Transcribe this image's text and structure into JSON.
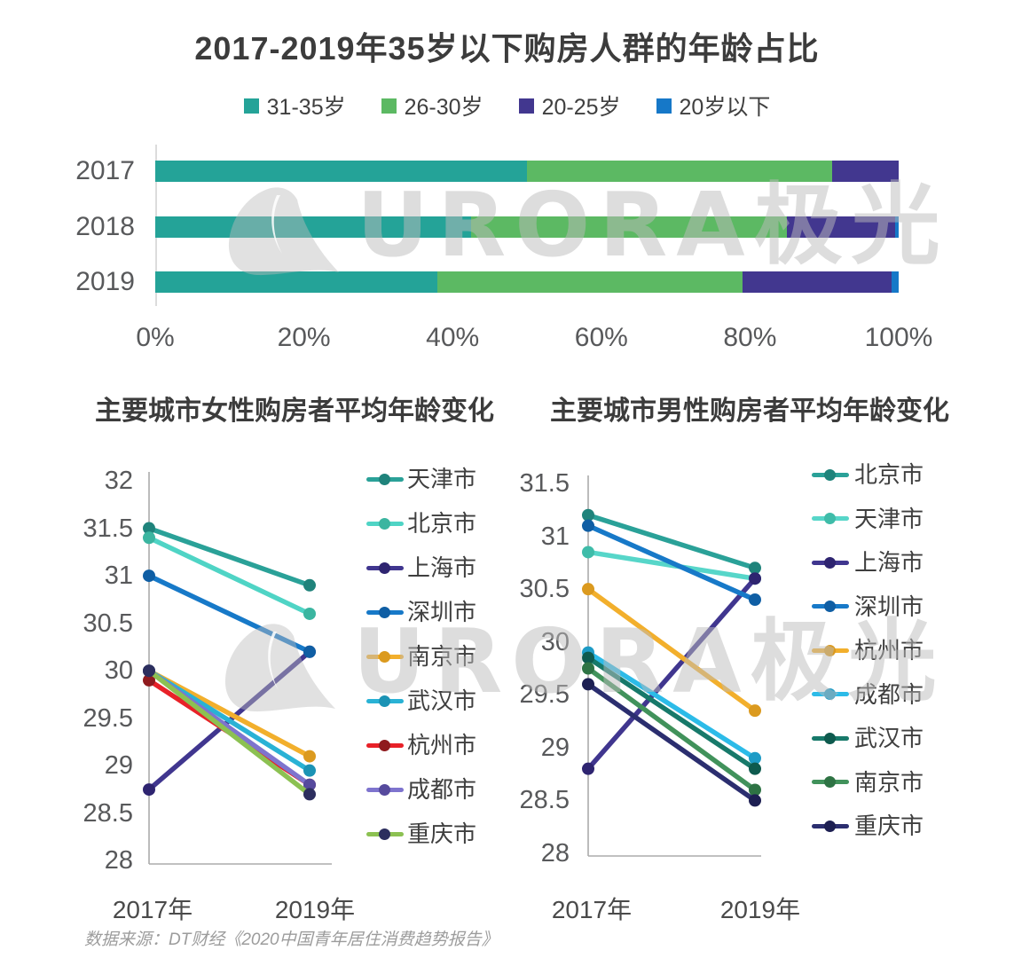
{
  "title": "2017-2019年35岁以下购房人群的年龄占比",
  "watermark": {
    "text": "URORA极光"
  },
  "source_note": "数据来源：DT财经《2020中国青年居住消费趋势报告》",
  "chart_data": [
    {
      "type": "bar",
      "stacked": true,
      "orientation": "horizontal",
      "title": "2017-2019年35岁以下购房人群的年龄占比",
      "legend_position": "top",
      "categories": [
        "2017",
        "2018",
        "2019"
      ],
      "x_ticks": [
        "0%",
        "20%",
        "40%",
        "60%",
        "80%",
        "100%"
      ],
      "xlim": [
        0,
        100
      ],
      "unit": "%",
      "series": [
        {
          "name": "31-35岁",
          "color": "#24A398",
          "values": [
            50,
            42.5,
            38
          ]
        },
        {
          "name": "26-30岁",
          "color": "#5CB963",
          "values": [
            41,
            42.5,
            41
          ]
        },
        {
          "name": "20-25岁",
          "color": "#42378F",
          "values": [
            9,
            14.5,
            20
          ]
        },
        {
          "name": "20岁以下",
          "color": "#1678C8",
          "values": [
            0,
            0.5,
            1
          ]
        }
      ]
    },
    {
      "type": "line",
      "title": "主要城市女性购房者平均年龄变化",
      "legend_position": "right",
      "x_categories": [
        "2017年",
        "2019年"
      ],
      "y_ticks": [
        "32",
        "31.5",
        "31",
        "30.5",
        "30",
        "29.5",
        "29",
        "28.5",
        "28"
      ],
      "ylim": [
        28,
        32
      ],
      "grid": false,
      "series": [
        {
          "name": "天津市",
          "color": "#2AA198",
          "dot_color": "#1F837B",
          "values": [
            31.5,
            30.9
          ]
        },
        {
          "name": "北京市",
          "color": "#4FD4C5",
          "dot_color": "#3BB5A0",
          "values": [
            31.4,
            30.6
          ]
        },
        {
          "name": "上海市",
          "color": "#40368F",
          "dot_color": "#2E2470",
          "values": [
            28.75,
            30.2
          ]
        },
        {
          "name": "深圳市",
          "color": "#1779C8",
          "dot_color": "#0F5EA4",
          "values": [
            31.0,
            30.2
          ]
        },
        {
          "name": "南京市",
          "color": "#F2AF2C",
          "dot_color": "#DB9A1F",
          "values": [
            30.0,
            29.1
          ]
        },
        {
          "name": "武汉市",
          "color": "#29B2D5",
          "dot_color": "#1B93B5",
          "values": [
            30.0,
            28.95
          ]
        },
        {
          "name": "杭州市",
          "color": "#E82128",
          "dot_color": "#8F1A1E",
          "values": [
            29.9,
            28.8
          ]
        },
        {
          "name": "成都市",
          "color": "#7E74CE",
          "dot_color": "#564A9D",
          "values": [
            30.0,
            28.8
          ]
        },
        {
          "name": "重庆市",
          "color": "#8CC152",
          "dot_color": "#2C2E5E",
          "values": [
            30.0,
            28.7
          ]
        }
      ]
    },
    {
      "type": "line",
      "title": "主要城市男性购房者平均年龄变化",
      "legend_position": "right",
      "x_categories": [
        "2017年",
        "2019年"
      ],
      "y_ticks": [
        "31.5",
        "31",
        "30.5",
        "30",
        "29.5",
        "29",
        "28.5",
        "28"
      ],
      "ylim": [
        28,
        31.5
      ],
      "grid": false,
      "series": [
        {
          "name": "北京市",
          "color": "#2AA198",
          "dot_color": "#1F837B",
          "values": [
            31.2,
            30.7
          ]
        },
        {
          "name": "天津市",
          "color": "#57D6C9",
          "dot_color": "#3FBCA9",
          "values": [
            30.85,
            30.6
          ]
        },
        {
          "name": "上海市",
          "color": "#40368F",
          "dot_color": "#2E2470",
          "values": [
            28.8,
            30.6
          ]
        },
        {
          "name": "深圳市",
          "color": "#1779C8",
          "dot_color": "#0F5EA4",
          "values": [
            31.1,
            30.4
          ]
        },
        {
          "name": "杭州市",
          "color": "#F2AF2C",
          "dot_color": "#DB9A1F",
          "values": [
            30.5,
            29.35
          ]
        },
        {
          "name": "成都市",
          "color": "#2CBBE8",
          "dot_color": "#1D9BC6",
          "values": [
            29.9,
            28.9
          ]
        },
        {
          "name": "武汉市",
          "color": "#17796A",
          "dot_color": "#0E5A4E",
          "values": [
            29.85,
            28.8
          ]
        },
        {
          "name": "南京市",
          "color": "#41925B",
          "dot_color": "#2E7344",
          "values": [
            29.75,
            28.6
          ]
        },
        {
          "name": "重庆市",
          "color": "#2B2E6F",
          "dot_color": "#1D1F52",
          "values": [
            29.6,
            28.5
          ]
        }
      ]
    }
  ]
}
